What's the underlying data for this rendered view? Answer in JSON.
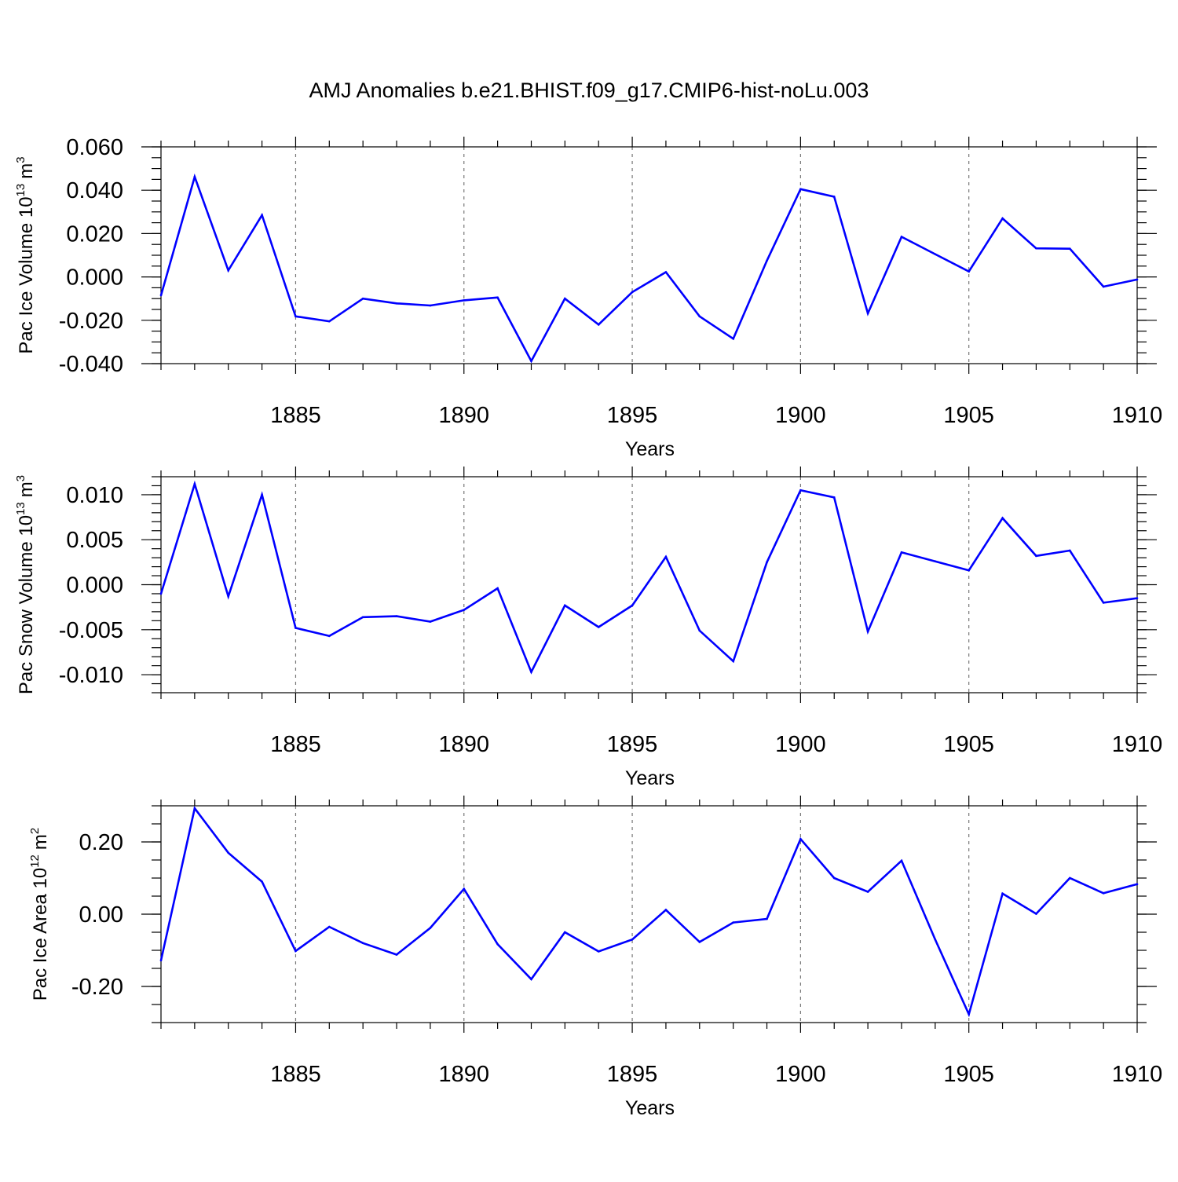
{
  "chart_data": [
    {
      "type": "line",
      "title": "AMJ Anomalies b.e21.BHIST.f09_g17.CMIP6-hist-noLu.003",
      "xlabel": "Years",
      "ylabel": "Pac Ice Volume 10",
      "ylabel_exp": "13",
      "ylabel_unit": "m",
      "ylabel_unit_exp": "3",
      "xlim": [
        1881,
        1910
      ],
      "ylim": [
        -0.04,
        0.06
      ],
      "xticks": [
        1885,
        1890,
        1895,
        1900,
        1905,
        1910
      ],
      "xtick_labels": [
        "1885",
        "1890",
        "1895",
        "1900",
        "1905",
        "1910"
      ],
      "yticks": [
        -0.04,
        -0.02,
        0.0,
        0.02,
        0.04,
        0.06
      ],
      "ytick_labels": [
        "-0.040",
        "-0.020",
        "0.000",
        "0.020",
        "0.040",
        "0.060"
      ],
      "yminor_step": 0.005,
      "color": "#0000ff",
      "series": [
        {
          "name": "Pac Ice Volume",
          "x": [
            1881,
            1882,
            1883,
            1884,
            1885,
            1886,
            1887,
            1888,
            1889,
            1890,
            1891,
            1892,
            1893,
            1894,
            1895,
            1896,
            1897,
            1898,
            1899,
            1900,
            1901,
            1902,
            1903,
            1904,
            1905,
            1906,
            1907,
            1908,
            1909,
            1910
          ],
          "values": [
            -0.0085,
            0.0462,
            0.003,
            0.0285,
            -0.0182,
            -0.0205,
            -0.01,
            -0.0122,
            -0.0132,
            -0.0108,
            -0.0095,
            -0.0388,
            -0.01,
            -0.022,
            -0.007,
            0.0022,
            -0.0182,
            -0.0285,
            0.0075,
            0.0405,
            0.037,
            -0.0168,
            0.0185,
            0.0105,
            0.0025,
            0.027,
            0.0132,
            0.013,
            -0.0045,
            -0.0012
          ]
        }
      ]
    },
    {
      "type": "line",
      "xlabel": "Years",
      "ylabel": "Pac Snow Volume 10",
      "ylabel_exp": "13",
      "ylabel_unit": "m",
      "ylabel_unit_exp": "3",
      "xlim": [
        1881,
        1910
      ],
      "ylim": [
        -0.012,
        0.012
      ],
      "xticks": [
        1885,
        1890,
        1895,
        1900,
        1905,
        1910
      ],
      "xtick_labels": [
        "1885",
        "1890",
        "1895",
        "1900",
        "1905",
        "1910"
      ],
      "yticks": [
        -0.01,
        -0.005,
        0.0,
        0.005,
        0.01
      ],
      "ytick_labels": [
        "-0.010",
        "-0.005",
        "0.000",
        "0.005",
        "0.010"
      ],
      "yminor_step": 0.001,
      "color": "#0000ff",
      "series": [
        {
          "name": "Pac Snow Volume",
          "x": [
            1881,
            1882,
            1883,
            1884,
            1885,
            1886,
            1887,
            1888,
            1889,
            1890,
            1891,
            1892,
            1893,
            1894,
            1895,
            1896,
            1897,
            1898,
            1899,
            1900,
            1901,
            1902,
            1903,
            1904,
            1905,
            1906,
            1907,
            1908,
            1909,
            1910
          ],
          "values": [
            -0.001,
            0.0112,
            -0.0013,
            0.01,
            -0.0048,
            -0.0057,
            -0.0036,
            -0.0035,
            -0.0041,
            -0.0028,
            -0.0004,
            -0.0097,
            -0.0023,
            -0.0047,
            -0.0023,
            0.0031,
            -0.0051,
            -0.0085,
            0.0025,
            0.0105,
            0.0097,
            -0.0052,
            0.0036,
            0.0026,
            0.0016,
            0.0074,
            0.0032,
            0.0038,
            -0.002,
            -0.0015
          ]
        }
      ]
    },
    {
      "type": "line",
      "xlabel": "Years",
      "ylabel": "Pac Ice Area 10",
      "ylabel_exp": "12",
      "ylabel_unit": "m",
      "ylabel_unit_exp": "2",
      "xlim": [
        1881,
        1910
      ],
      "ylim": [
        -0.3,
        0.3
      ],
      "xticks": [
        1885,
        1890,
        1895,
        1900,
        1905,
        1910
      ],
      "xtick_labels": [
        "1885",
        "1890",
        "1895",
        "1900",
        "1905",
        "1910"
      ],
      "yticks": [
        -0.2,
        0.0,
        0.2
      ],
      "ytick_labels": [
        "-0.20",
        "0.00",
        "0.20"
      ],
      "yminor_step": 0.05,
      "color": "#0000ff",
      "series": [
        {
          "name": "Pac Ice Area",
          "x": [
            1881,
            1882,
            1883,
            1884,
            1885,
            1886,
            1887,
            1888,
            1889,
            1890,
            1891,
            1892,
            1893,
            1894,
            1895,
            1896,
            1897,
            1898,
            1899,
            1900,
            1901,
            1902,
            1903,
            1904,
            1905,
            1906,
            1907,
            1908,
            1909,
            1910
          ],
          "values": [
            -0.128,
            0.293,
            0.17,
            0.09,
            -0.102,
            -0.035,
            -0.08,
            -0.112,
            -0.038,
            0.07,
            -0.083,
            -0.18,
            -0.05,
            -0.103,
            -0.07,
            0.012,
            -0.077,
            -0.023,
            -0.013,
            0.208,
            0.1,
            0.062,
            0.148,
            -0.07,
            -0.277,
            0.057,
            0.001,
            0.1,
            0.058,
            0.083
          ]
        }
      ]
    }
  ]
}
